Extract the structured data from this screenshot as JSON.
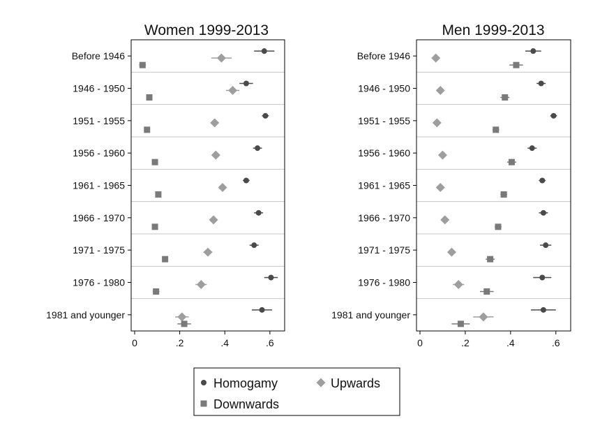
{
  "colors": {
    "homogamy": "#4a4a4a",
    "upwards": "#9e9e9e",
    "downwards": "#7a7a7a",
    "separator": "#c4c4c4",
    "frame": "#000000"
  },
  "legend": {
    "placement": "bottom-center",
    "items": [
      {
        "key": "homogamy",
        "label": "Homogamy",
        "marker": "circle"
      },
      {
        "key": "upwards",
        "label": "Upwards",
        "marker": "diamond"
      },
      {
        "key": "downwards",
        "label": "Downwards",
        "marker": "square"
      }
    ]
  },
  "chart_data": [
    {
      "type": "scatter",
      "title": "Women 1999-2013",
      "xlim": [
        0,
        0.65
      ],
      "xticks": [
        0,
        0.2,
        0.4,
        0.6
      ],
      "xtick_labels": [
        "0",
        ".2",
        ".4",
        ".6"
      ],
      "grid": false,
      "categories": [
        "Before 1946",
        "1946 - 1950",
        "1951 - 1955",
        "1956 - 1960",
        "1961 - 1965",
        "1966 - 1970",
        "1971 - 1975",
        "1976 - 1980",
        "1981 and younger"
      ],
      "series": [
        {
          "name": "Homogamy",
          "key": "homogamy",
          "values": [
            0.575,
            0.495,
            0.58,
            0.545,
            0.495,
            0.55,
            0.53,
            0.605,
            0.565
          ],
          "ci": [
            [
              0.53,
              0.62
            ],
            [
              0.465,
              0.525
            ],
            [
              0.565,
              0.595
            ],
            [
              0.525,
              0.565
            ],
            [
              0.48,
              0.51
            ],
            [
              0.53,
              0.57
            ],
            [
              0.51,
              0.55
            ],
            [
              0.575,
              0.635
            ],
            [
              0.52,
              0.61
            ]
          ]
        },
        {
          "name": "Upwards",
          "key": "upwards",
          "values": [
            0.385,
            0.435,
            0.355,
            0.36,
            0.39,
            0.35,
            0.325,
            0.295,
            0.21
          ],
          "ci": [
            [
              0.34,
              0.43
            ],
            [
              0.405,
              0.465
            ],
            [
              0.34,
              0.37
            ],
            [
              0.345,
              0.375
            ],
            [
              0.375,
              0.405
            ],
            [
              0.335,
              0.365
            ],
            [
              0.305,
              0.345
            ],
            [
              0.27,
              0.32
            ],
            [
              0.18,
              0.24
            ]
          ]
        },
        {
          "name": "Downwards",
          "key": "downwards",
          "values": [
            0.035,
            0.065,
            0.055,
            0.09,
            0.105,
            0.09,
            0.135,
            0.095,
            0.22
          ],
          "ci": [
            [
              0.02,
              0.05
            ],
            [
              0.055,
              0.075
            ],
            [
              0.05,
              0.06
            ],
            [
              0.085,
              0.095
            ],
            [
              0.1,
              0.11
            ],
            [
              0.085,
              0.095
            ],
            [
              0.125,
              0.145
            ],
            [
              0.08,
              0.11
            ],
            [
              0.19,
              0.25
            ]
          ]
        }
      ]
    },
    {
      "type": "scatter",
      "title": "Men 1999-2013",
      "xlim": [
        0,
        0.65
      ],
      "xticks": [
        0,
        0.2,
        0.4,
        0.6
      ],
      "xtick_labels": [
        "0",
        ".2",
        ".4",
        ".6"
      ],
      "grid": false,
      "categories": [
        "Before 1946",
        "1946 - 1950",
        "1951 - 1955",
        "1956 - 1960",
        "1961 - 1965",
        "1966 - 1970",
        "1971 - 1975",
        "1976 - 1980",
        "1981 and younger"
      ],
      "series": [
        {
          "name": "Homogamy",
          "key": "homogamy",
          "values": [
            0.5,
            0.535,
            0.59,
            0.495,
            0.54,
            0.545,
            0.555,
            0.54,
            0.545
          ],
          "ci": [
            [
              0.465,
              0.535
            ],
            [
              0.515,
              0.555
            ],
            [
              0.575,
              0.605
            ],
            [
              0.475,
              0.515
            ],
            [
              0.525,
              0.555
            ],
            [
              0.525,
              0.565
            ],
            [
              0.53,
              0.58
            ],
            [
              0.5,
              0.58
            ],
            [
              0.49,
              0.6
            ]
          ]
        },
        {
          "name": "Upwards",
          "key": "upwards",
          "values": [
            0.07,
            0.09,
            0.075,
            0.1,
            0.09,
            0.11,
            0.14,
            0.17,
            0.28
          ],
          "ci": [
            [
              0.06,
              0.08
            ],
            [
              0.08,
              0.1
            ],
            [
              0.065,
              0.085
            ],
            [
              0.09,
              0.11
            ],
            [
              0.08,
              0.1
            ],
            [
              0.095,
              0.125
            ],
            [
              0.125,
              0.155
            ],
            [
              0.145,
              0.195
            ],
            [
              0.235,
              0.325
            ]
          ]
        },
        {
          "name": "Downwards",
          "key": "downwards",
          "values": [
            0.425,
            0.375,
            0.335,
            0.405,
            0.37,
            0.345,
            0.31,
            0.295,
            0.18
          ],
          "ci": [
            [
              0.395,
              0.455
            ],
            [
              0.355,
              0.395
            ],
            [
              0.32,
              0.35
            ],
            [
              0.385,
              0.425
            ],
            [
              0.355,
              0.385
            ],
            [
              0.33,
              0.36
            ],
            [
              0.29,
              0.33
            ],
            [
              0.265,
              0.325
            ],
            [
              0.14,
              0.22
            ]
          ]
        }
      ]
    }
  ]
}
